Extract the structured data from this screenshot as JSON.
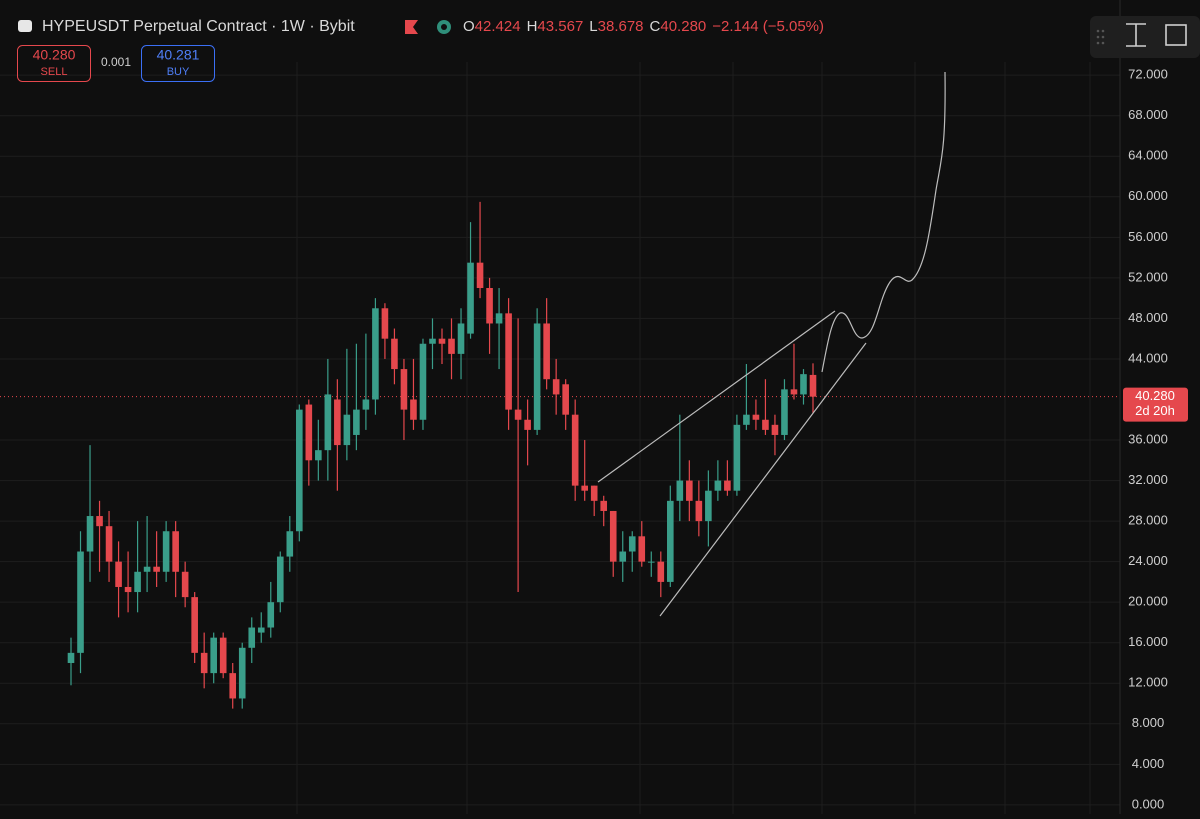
{
  "chart_data": {
    "type": "candlestick",
    "title": "HYPEUSDT Perpetual Contract · 1W · Bybit",
    "ohlc_prefixes": [
      "O",
      "H",
      "L",
      "C"
    ],
    "ohlc_labels": [
      "42.424",
      "43.567",
      "38.678",
      "40.280"
    ],
    "change_label": "−2.144 (−5.05%)",
    "sell": {
      "price": "40.280",
      "label": "SELL"
    },
    "spread": "0.001",
    "buy": {
      "price": "40.281",
      "label": "BUY"
    },
    "price_tag": {
      "value": 40.28,
      "label": "40.280"
    },
    "countdown": "2d 20h",
    "up_color": "#3a9e8a",
    "down_color": "#e5484d",
    "open": [
      14,
      15,
      25,
      28.5,
      27.5,
      24,
      21.5,
      21,
      23,
      23.5,
      23,
      27,
      23,
      20.5,
      15,
      13,
      16.5,
      13,
      10.5,
      15.5,
      17,
      17.5,
      20,
      24.5,
      27,
      39.5,
      34,
      35,
      40,
      35.5,
      36.5,
      39,
      40,
      49,
      46,
      43,
      40,
      38,
      45.5,
      46,
      46,
      44.5,
      46.5,
      53.5,
      51,
      47.5,
      48.5,
      39,
      38,
      37,
      47.5,
      42,
      41.5,
      38.5,
      31.5,
      31.5,
      30,
      29,
      24,
      25,
      26.5,
      24,
      24,
      22,
      30,
      32,
      30,
      28,
      31,
      32,
      31,
      37.5,
      38.5,
      38,
      37.5,
      36.5,
      41,
      40.5,
      42.424
    ],
    "high": [
      16.5,
      27,
      35.5,
      30,
      29,
      26,
      25,
      28,
      28.5,
      27,
      28,
      28,
      24,
      21,
      17,
      17,
      17,
      14,
      16,
      18.5,
      19,
      22,
      25,
      28.5,
      39.5,
      40,
      38,
      44,
      42,
      45,
      45.5,
      46.5,
      50,
      49.5,
      47,
      44,
      44,
      46,
      48,
      47,
      48,
      49,
      57.5,
      59.5,
      52,
      51,
      50,
      48,
      40,
      49,
      50,
      44,
      42,
      40,
      36,
      31.5,
      30.5,
      29,
      27,
      27,
      28,
      25,
      25,
      31.5,
      38.5,
      34,
      32,
      33,
      34,
      34,
      38.5,
      43.5,
      40,
      42,
      38.5,
      42,
      45.5,
      43,
      43.567
    ],
    "low": [
      11.8,
      13,
      22,
      23,
      22,
      18.5,
      19,
      19,
      21,
      21.5,
      22,
      20.5,
      19.5,
      14,
      11.5,
      12,
      12.5,
      9.5,
      9.5,
      14,
      16,
      16.5,
      19,
      23,
      26,
      31.5,
      32,
      32,
      31,
      34,
      35,
      37,
      38.5,
      44,
      41.5,
      36,
      37,
      37,
      43,
      43.5,
      42,
      42,
      46,
      50,
      44.5,
      43,
      37,
      21,
      33.5,
      36.5,
      41,
      38.5,
      37,
      30,
      30,
      28.5,
      27.5,
      22.5,
      22,
      23,
      23.5,
      22.5,
      20.5,
      21.5,
      28,
      28,
      26.5,
      25.5,
      30,
      30.5,
      30.5,
      37,
      37,
      36.5,
      34.5,
      36,
      40,
      39.5,
      38.678
    ],
    "close": [
      15,
      25,
      28.5,
      27.5,
      24,
      21.5,
      21,
      23,
      23.5,
      23,
      27,
      23,
      20.5,
      15,
      13,
      16.5,
      13,
      10.5,
      15.5,
      17.5,
      17.5,
      20,
      24.5,
      27,
      39,
      34,
      35,
      40.5,
      35.5,
      38.5,
      39,
      40,
      49,
      46,
      43,
      39,
      38,
      45.5,
      46,
      45.5,
      44.5,
      47.5,
      53.5,
      51,
      47.5,
      48.5,
      39,
      38,
      37,
      47.5,
      42,
      40.5,
      38.5,
      31.5,
      31,
      30,
      29,
      24,
      25,
      26.5,
      24,
      24,
      22,
      30,
      32,
      30,
      28,
      31,
      32,
      31,
      37.5,
      38.5,
      38,
      37,
      36.5,
      41,
      40.5,
      42.5,
      40.28
    ],
    "ylim": [
      -0.9,
      73.3
    ],
    "yticks": [
      {
        "value": 72,
        "label": "72.000"
      },
      {
        "value": 68,
        "label": "68.000"
      },
      {
        "value": 64,
        "label": "64.000"
      },
      {
        "value": 60,
        "label": "60.000"
      },
      {
        "value": 56,
        "label": "56.000"
      },
      {
        "value": 52,
        "label": "52.000"
      },
      {
        "value": 48,
        "label": "48.000"
      },
      {
        "value": 44,
        "label": "44.000"
      },
      {
        "value": 36,
        "label": "36.000"
      },
      {
        "value": 32,
        "label": "32.000"
      },
      {
        "value": 28,
        "label": "28.000"
      },
      {
        "value": 24,
        "label": "24.000"
      },
      {
        "value": 20,
        "label": "20.000"
      },
      {
        "value": 16,
        "label": "16.000"
      },
      {
        "value": 12,
        "label": "12.000"
      },
      {
        "value": 8,
        "label": "8.000"
      },
      {
        "value": 4,
        "label": "4.000"
      },
      {
        "value": 0,
        "label": "0.000"
      }
    ],
    "grid": true
  }
}
